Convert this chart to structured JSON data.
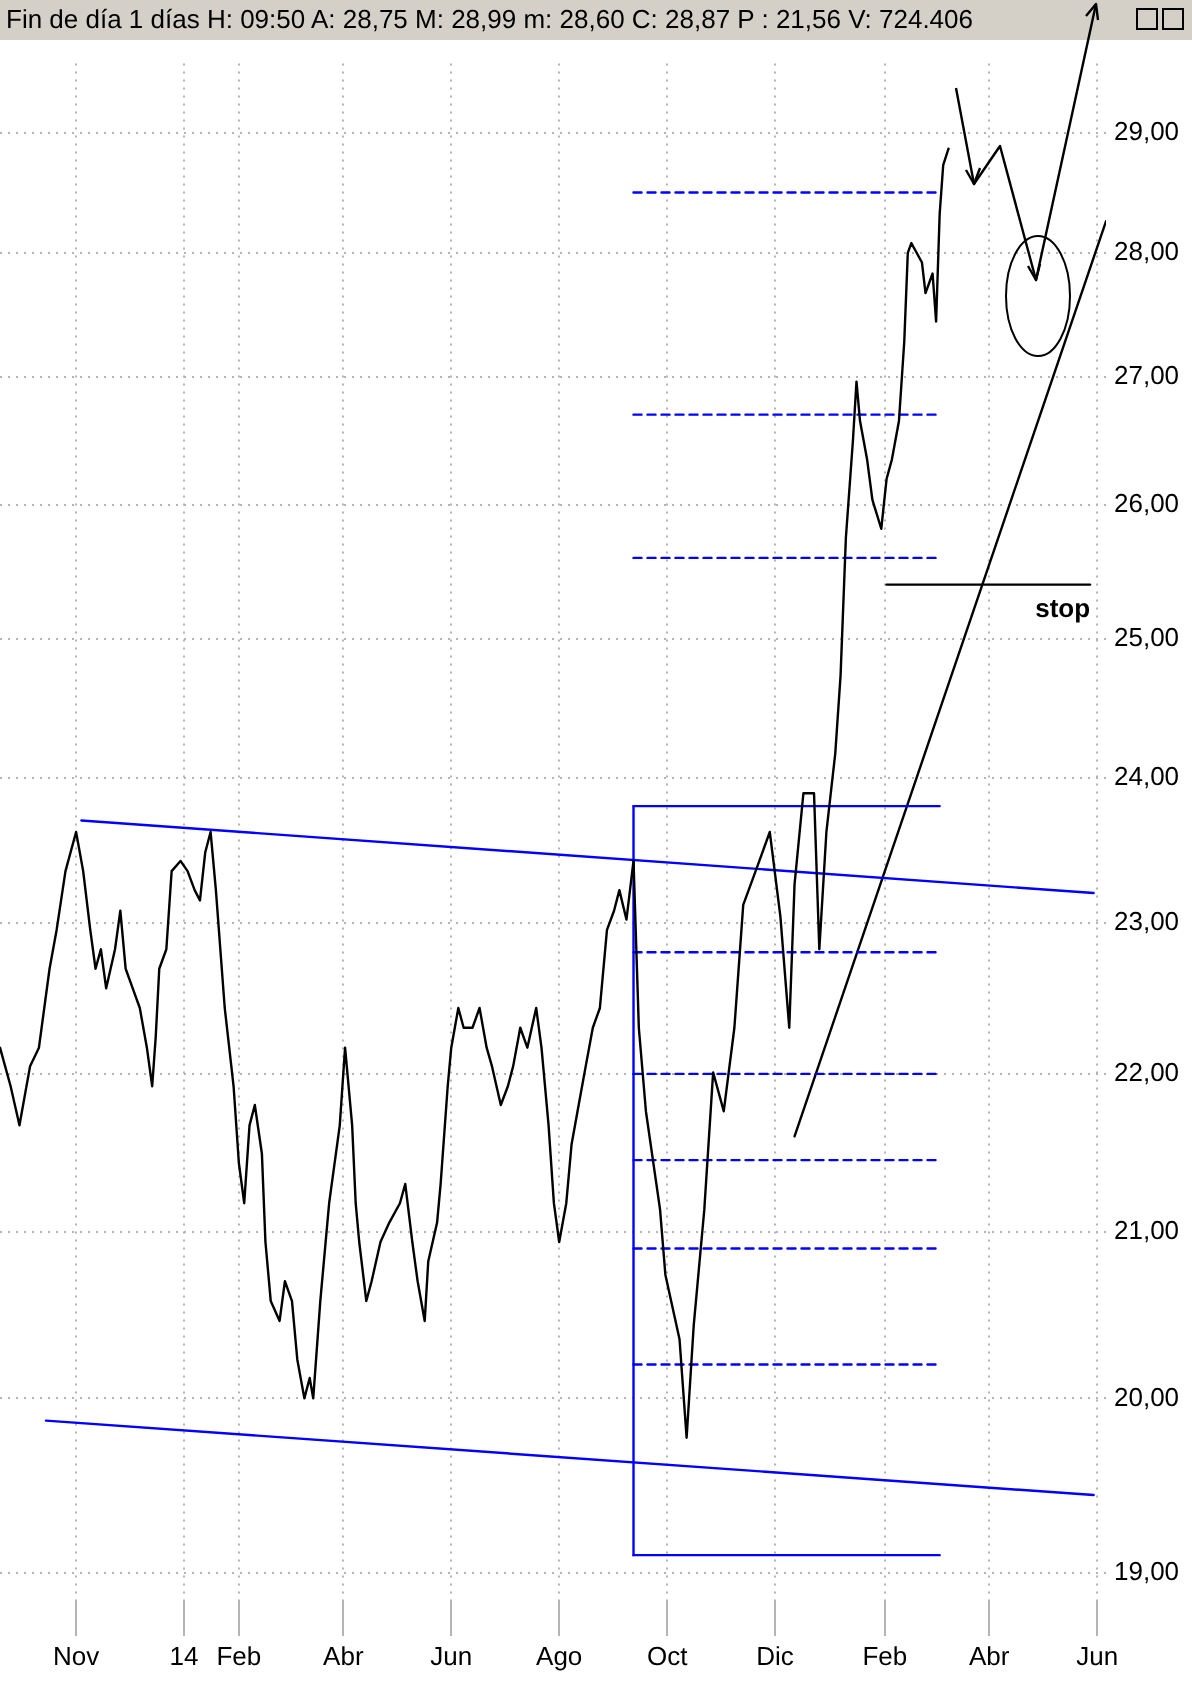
{
  "chart_data": {
    "type": "line",
    "title": "Fin de día 1 días  H: 09:50  A: 28,75  M: 28,99  m: 28,60  C: 28,87  P : 21,56  V: 724.406",
    "log": true,
    "grid": true,
    "legend": false,
    "xlim": [
      "2013-09-19",
      "2015-06-06"
    ],
    "xticks": [
      {
        "value": "2013-11-01",
        "label": "Nov"
      },
      {
        "value": "2014-01-01",
        "label": "14"
      },
      {
        "value": "2014-02-01",
        "label": "Feb"
      },
      {
        "value": "2014-04-01",
        "label": "Abr"
      },
      {
        "value": "2014-06-01",
        "label": "Jun"
      },
      {
        "value": "2014-08-01",
        "label": "Ago"
      },
      {
        "value": "2014-10-01",
        "label": "Oct"
      },
      {
        "value": "2014-12-01",
        "label": "Dic"
      },
      {
        "value": "2015-02-01",
        "label": "Feb"
      },
      {
        "value": "2015-04-01",
        "label": "Abr"
      },
      {
        "value": "2015-06-01",
        "label": "Jun"
      }
    ],
    "ylim": [
      18.85,
      29.6
    ],
    "yticks": [
      {
        "value": 19,
        "label": "19,00"
      },
      {
        "value": 20,
        "label": "20,00"
      },
      {
        "value": 21,
        "label": "21,00"
      },
      {
        "value": 22,
        "label": "22,00"
      },
      {
        "value": 23,
        "label": "23,00"
      },
      {
        "value": 24,
        "label": "24,00"
      },
      {
        "value": 25,
        "label": "25,00"
      },
      {
        "value": 26,
        "label": "26,00"
      },
      {
        "value": 27,
        "label": "27,00"
      },
      {
        "value": 28,
        "label": "28,00"
      },
      {
        "value": 29,
        "label": "29,00"
      }
    ],
    "annotations": [
      {
        "text": "stop",
        "x": "2015-05-28",
        "y": 25.4
      }
    ],
    "series": [
      {
        "color": "#000000",
        "x": [
          "2013-09-19",
          "2013-09-25",
          "2013-09-30",
          "2013-10-06",
          "2013-10-11",
          "2013-10-17",
          "2013-10-21",
          "2013-10-26",
          "2013-11-01",
          "2013-11-05",
          "2013-11-09",
          "2013-11-12",
          "2013-11-15",
          "2013-11-18",
          "2013-11-23",
          "2013-11-26",
          "2013-11-29",
          "2013-12-03",
          "2013-12-07",
          "2013-12-11",
          "2013-12-14",
          "2013-12-16",
          "2013-12-18",
          "2013-12-22",
          "2013-12-25",
          "2013-12-30",
          "2014-01-03",
          "2014-01-07",
          "2014-01-10",
          "2014-01-13",
          "2014-01-16",
          "2014-01-19",
          "2014-01-24",
          "2014-01-29",
          "2014-02-01",
          "2014-02-04",
          "2014-02-07",
          "2014-02-10",
          "2014-02-14",
          "2014-02-16",
          "2014-02-19",
          "2014-02-24",
          "2014-02-27",
          "2014-03-03",
          "2014-03-06",
          "2014-03-10",
          "2014-03-13",
          "2014-03-15",
          "2014-03-19",
          "2014-03-24",
          "2014-03-30",
          "2014-04-02",
          "2014-04-06",
          "2014-04-08",
          "2014-04-10",
          "2014-04-14",
          "2014-04-17",
          "2014-04-22",
          "2014-04-27",
          "2014-05-03",
          "2014-05-06",
          "2014-05-10",
          "2014-05-13",
          "2014-05-17",
          "2014-05-19",
          "2014-05-24",
          "2014-05-26",
          "2014-05-30",
          "2014-06-01",
          "2014-06-05",
          "2014-06-08",
          "2014-06-13",
          "2014-06-17",
          "2014-06-21",
          "2014-06-24",
          "2014-06-29",
          "2014-07-03",
          "2014-07-06",
          "2014-07-10",
          "2014-07-14",
          "2014-07-19",
          "2014-07-22",
          "2014-07-26",
          "2014-07-29",
          "2014-08-01",
          "2014-08-05",
          "2014-08-08",
          "2014-08-12",
          "2014-08-16",
          "2014-08-20",
          "2014-08-24",
          "2014-08-28",
          "2014-09-01",
          "2014-09-04",
          "2014-09-08",
          "2014-09-12",
          "2014-09-15",
          "2014-09-19",
          "2014-09-27",
          "2014-09-30",
          "2014-10-08",
          "2014-10-12",
          "2014-10-16",
          "2014-10-22",
          "2014-10-27",
          "2014-11-02",
          "2014-11-08",
          "2014-11-13",
          "2014-11-20",
          "2014-11-28",
          "2014-12-04",
          "2014-12-09",
          "2014-12-12",
          "2014-12-17",
          "2014-12-23",
          "2014-12-26",
          "2014-12-30",
          "2015-01-04",
          "2015-01-07",
          "2015-01-10",
          "2015-01-14",
          "2015-01-16",
          "2015-01-18",
          "2015-01-22",
          "2015-01-25",
          "2015-01-30",
          "2015-02-02",
          "2015-02-05",
          "2015-02-09",
          "2015-02-12",
          "2015-02-14",
          "2015-02-16",
          "2015-02-19",
          "2015-02-22",
          "2015-02-24",
          "2015-02-28",
          "2015-03-02",
          "2015-03-04",
          "2015-03-06",
          "2015-03-09"
        ],
        "values": [
          22.17,
          21.92,
          21.67,
          22.05,
          22.17,
          22.69,
          22.95,
          23.35,
          23.62,
          23.35,
          22.95,
          22.69,
          22.82,
          22.56,
          22.82,
          23.08,
          22.69,
          22.56,
          22.43,
          22.17,
          21.92,
          22.24,
          22.69,
          22.82,
          23.35,
          23.42,
          23.35,
          23.22,
          23.15,
          23.48,
          23.62,
          23.22,
          22.43,
          21.92,
          21.43,
          21.18,
          21.67,
          21.8,
          21.49,
          20.94,
          20.58,
          20.46,
          20.7,
          20.58,
          20.23,
          20.0,
          20.12,
          20.0,
          20.58,
          21.18,
          21.67,
          22.17,
          21.67,
          21.18,
          20.94,
          20.58,
          20.7,
          20.94,
          21.06,
          21.18,
          21.3,
          20.94,
          20.7,
          20.46,
          20.82,
          21.06,
          21.3,
          21.92,
          22.17,
          22.43,
          22.3,
          22.3,
          22.43,
          22.17,
          22.05,
          21.8,
          21.92,
          22.05,
          22.3,
          22.17,
          22.43,
          22.17,
          21.67,
          21.18,
          20.94,
          21.18,
          21.55,
          21.8,
          22.05,
          22.3,
          22.43,
          22.95,
          23.08,
          23.22,
          23.02,
          23.42,
          22.3,
          21.76,
          21.14,
          20.74,
          20.35,
          19.77,
          20.43,
          21.14,
          22.01,
          21.76,
          22.3,
          23.12,
          23.35,
          23.62,
          23.04,
          22.3,
          23.26,
          23.89,
          23.89,
          22.82,
          23.62,
          24.17,
          24.73,
          25.75,
          26.5,
          26.96,
          26.65,
          26.35,
          26.04,
          25.82,
          26.2,
          26.35,
          26.65,
          27.28,
          28.0,
          28.08,
          28.0,
          27.92,
          27.67,
          27.83,
          27.44,
          28.32,
          28.73,
          28.87
        ]
      },
      {
        "color": "#0000ff",
        "x": [
          "2013-11-04",
          "2015-05-30"
        ],
        "values": [
          23.7,
          23.2
        ]
      },
      {
        "color": "#0000ff",
        "x": [
          "2013-10-15",
          "2015-05-30"
        ],
        "values": [
          19.87,
          19.44
        ]
      },
      {
        "color": "#0000ff",
        "x": [
          "2014-09-12",
          "2015-03-04"
        ],
        "values": [
          23.8,
          23.8
        ]
      },
      {
        "color": "#0000ff",
        "x": [
          "2014-09-12",
          "2015-03-04"
        ],
        "values": [
          19.1,
          19.1
        ]
      },
      {
        "color": "#0000ff",
        "x": [
          "2014-09-12",
          "2014-09-12"
        ],
        "values": [
          19.1,
          23.8
        ]
      },
      {
        "color": "#0000ff",
        "line_style": "dashed",
        "x": [
          "2014-09-12",
          "2015-03-04"
        ],
        "values": [
          22.8,
          22.8
        ]
      },
      {
        "color": "#0000ff",
        "line_style": "dashed",
        "x": [
          "2014-09-12",
          "2015-03-04"
        ],
        "values": [
          22.0,
          22.0
        ]
      },
      {
        "color": "#0000ff",
        "line_style": "dashed",
        "x": [
          "2014-09-12",
          "2015-03-04"
        ],
        "values": [
          21.45,
          21.45
        ]
      },
      {
        "color": "#0000ff",
        "line_style": "dashed",
        "x": [
          "2014-09-12",
          "2015-03-04"
        ],
        "values": [
          20.9,
          20.9
        ]
      },
      {
        "color": "#0000ff",
        "line_style": "dashed",
        "x": [
          "2014-09-12",
          "2015-03-04"
        ],
        "values": [
          20.2,
          20.2
        ]
      },
      {
        "color": "#0000ff",
        "line_style": "dashed",
        "x": [
          "2014-09-12",
          "2015-03-04"
        ],
        "values": [
          28.5,
          28.5
        ]
      },
      {
        "color": "#0000ff",
        "line_style": "dashed",
        "x": [
          "2014-09-12",
          "2015-03-04"
        ],
        "values": [
          26.7,
          26.7
        ]
      },
      {
        "color": "#0000ff",
        "line_style": "dashed",
        "x": [
          "2014-09-12",
          "2015-03-04"
        ],
        "values": [
          25.6,
          25.6
        ]
      },
      {
        "color": "#000000",
        "x": [
          "2015-02-02",
          "2015-05-28"
        ],
        "values": [
          25.4,
          25.4
        ]
      },
      {
        "color": "#000000",
        "x": [
          "2014-12-12",
          "2015-06-06"
        ],
        "values": [
          21.6,
          28.26
        ]
      }
    ]
  }
}
